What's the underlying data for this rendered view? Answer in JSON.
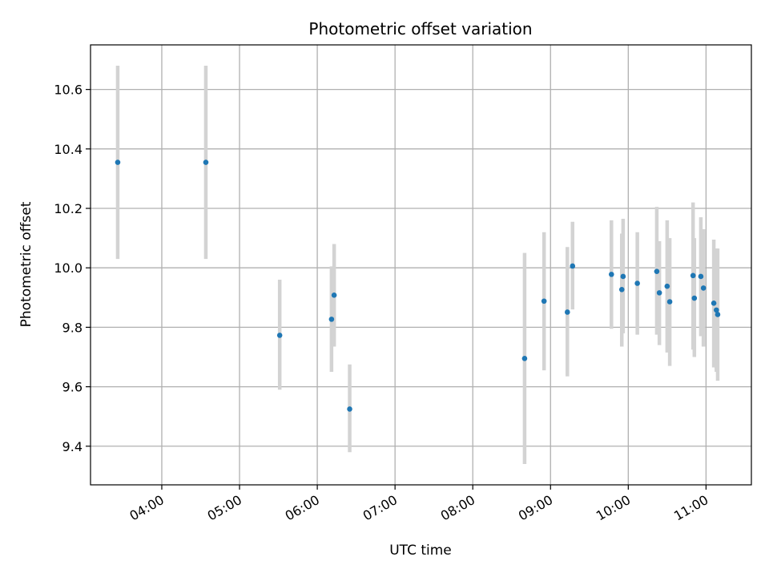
{
  "chart_data": {
    "type": "scatter",
    "title": "Photometric offset variation",
    "xlabel": "UTC time",
    "ylabel": "Photometric offset",
    "xlim": [
      "03:05",
      "11:35"
    ],
    "ylim": [
      9.27,
      10.75
    ],
    "grid": true,
    "legend": "none",
    "x_ticks": [
      "04:00",
      "05:00",
      "06:00",
      "07:00",
      "08:00",
      "09:00",
      "10:00",
      "11:00"
    ],
    "y_ticks": [
      "9.4",
      "9.6",
      "9.8",
      "10.0",
      "10.2",
      "10.4",
      "10.6"
    ],
    "colors": {
      "point": "#1f77b4",
      "errorbar": "#d3d3d3",
      "grid": "#b0b0b0"
    },
    "points": [
      {
        "x": "03:26",
        "y": 10.355,
        "lo": 10.03,
        "hi": 10.68
      },
      {
        "x": "04:34",
        "y": 10.355,
        "lo": 10.03,
        "hi": 10.68
      },
      {
        "x": "05:31",
        "y": 9.773,
        "lo": 9.59,
        "hi": 9.96
      },
      {
        "x": "06:11",
        "y": 9.827,
        "lo": 9.65,
        "hi": 10.005
      },
      {
        "x": "06:13",
        "y": 9.908,
        "lo": 9.735,
        "hi": 10.08
      },
      {
        "x": "06:25",
        "y": 9.525,
        "lo": 9.38,
        "hi": 9.675
      },
      {
        "x": "08:40",
        "y": 9.695,
        "lo": 9.34,
        "hi": 10.05
      },
      {
        "x": "08:55",
        "y": 9.888,
        "lo": 9.655,
        "hi": 10.12
      },
      {
        "x": "09:13",
        "y": 9.851,
        "lo": 9.635,
        "hi": 10.07
      },
      {
        "x": "09:17",
        "y": 10.006,
        "lo": 9.86,
        "hi": 10.155
      },
      {
        "x": "09:47",
        "y": 9.978,
        "lo": 9.795,
        "hi": 10.16
      },
      {
        "x": "09:55",
        "y": 9.927,
        "lo": 9.735,
        "hi": 10.115
      },
      {
        "x": "09:56",
        "y": 9.971,
        "lo": 9.78,
        "hi": 10.165
      },
      {
        "x": "10:07",
        "y": 9.948,
        "lo": 9.775,
        "hi": 10.12
      },
      {
        "x": "10:22",
        "y": 9.988,
        "lo": 9.775,
        "hi": 10.205
      },
      {
        "x": "10:24",
        "y": 9.916,
        "lo": 9.74,
        "hi": 10.09
      },
      {
        "x": "10:30",
        "y": 9.938,
        "lo": 9.715,
        "hi": 10.16
      },
      {
        "x": "10:32",
        "y": 9.886,
        "lo": 9.67,
        "hi": 10.1
      },
      {
        "x": "10:50",
        "y": 9.974,
        "lo": 9.725,
        "hi": 10.22
      },
      {
        "x": "10:51",
        "y": 9.898,
        "lo": 9.7,
        "hi": 10.1
      },
      {
        "x": "10:56",
        "y": 9.971,
        "lo": 9.77,
        "hi": 10.17
      },
      {
        "x": "10:58",
        "y": 9.932,
        "lo": 9.735,
        "hi": 10.13
      },
      {
        "x": "11:06",
        "y": 9.881,
        "lo": 9.665,
        "hi": 10.095
      },
      {
        "x": "11:08",
        "y": 9.858,
        "lo": 9.65,
        "hi": 10.065
      },
      {
        "x": "11:09",
        "y": 9.843,
        "lo": 9.62,
        "hi": 10.065
      }
    ]
  }
}
